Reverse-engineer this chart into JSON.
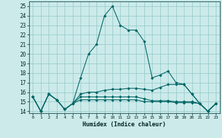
{
  "xlabel": "Humidex (Indice chaleur)",
  "background_color": "#cceaea",
  "grid_color": "#99cccc",
  "line_color": "#006666",
  "xlim": [
    -0.5,
    23.5
  ],
  "ylim": [
    13.8,
    25.5
  ],
  "yticks": [
    14,
    15,
    16,
    17,
    18,
    19,
    20,
    21,
    22,
    23,
    24,
    25
  ],
  "xticks": [
    0,
    1,
    2,
    3,
    4,
    5,
    6,
    7,
    8,
    9,
    10,
    11,
    12,
    13,
    14,
    15,
    16,
    17,
    18,
    19,
    20,
    21,
    22,
    23
  ],
  "series": [
    [
      15.5,
      14.0,
      15.8,
      15.2,
      14.2,
      14.8,
      17.5,
      20.0,
      21.0,
      24.0,
      25.0,
      23.0,
      22.5,
      22.5,
      21.3,
      17.5,
      17.8,
      18.2,
      17.0,
      16.8,
      15.8,
      14.8,
      14.0,
      14.8
    ],
    [
      15.5,
      14.0,
      15.8,
      15.2,
      14.2,
      14.8,
      15.8,
      16.0,
      16.0,
      16.2,
      16.3,
      16.3,
      16.4,
      16.4,
      16.3,
      16.2,
      16.5,
      16.8,
      16.8,
      16.8,
      15.8,
      14.8,
      14.0,
      14.8
    ],
    [
      15.5,
      14.0,
      15.8,
      15.2,
      14.2,
      14.8,
      15.2,
      15.2,
      15.2,
      15.2,
      15.2,
      15.2,
      15.2,
      15.2,
      15.0,
      15.0,
      15.0,
      15.0,
      14.9,
      14.9,
      14.9,
      14.8,
      14.0,
      14.8
    ],
    [
      15.5,
      14.0,
      15.8,
      15.2,
      14.2,
      14.8,
      15.5,
      15.5,
      15.5,
      15.5,
      15.5,
      15.5,
      15.5,
      15.5,
      15.3,
      15.1,
      15.1,
      15.1,
      15.0,
      15.0,
      15.0,
      14.8,
      14.0,
      14.8
    ]
  ]
}
